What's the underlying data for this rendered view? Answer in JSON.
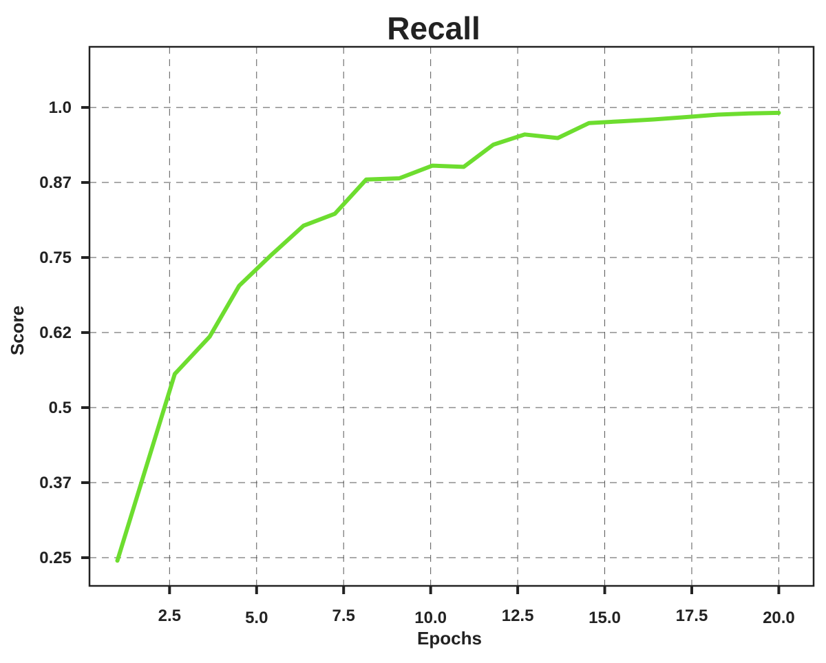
{
  "chart_data": {
    "type": "line",
    "title": "Recall",
    "xlabel": "Epochs",
    "ylabel": "Score",
    "xlim": [
      0.2,
      21.0
    ],
    "ylim": [
      0.203,
      1.101
    ],
    "grid": true,
    "x_ticks": [
      {
        "value": 2.5,
        "label": "2.5"
      },
      {
        "value": 5.0,
        "label": "5.0"
      },
      {
        "value": 7.5,
        "label": "7.5"
      },
      {
        "value": 10.0,
        "label": "10.0"
      },
      {
        "value": 12.5,
        "label": "12.5"
      },
      {
        "value": 15.0,
        "label": "15.0"
      },
      {
        "value": 17.5,
        "label": "17.5"
      },
      {
        "value": 20.0,
        "label": "20.0"
      }
    ],
    "y_ticks": [
      {
        "value": 0.25,
        "label": "0.25"
      },
      {
        "value": 0.375,
        "label": "0.37"
      },
      {
        "value": 0.5,
        "label": "0.5"
      },
      {
        "value": 0.625,
        "label": "0.62"
      },
      {
        "value": 0.75,
        "label": "0.75"
      },
      {
        "value": 0.875,
        "label": "0.87"
      },
      {
        "value": 1.0,
        "label": "1.0"
      }
    ],
    "series": [
      {
        "color": "#6ddd2f",
        "x": [
          1.0,
          2.65,
          3.65,
          4.5,
          5.4,
          6.35,
          7.25,
          8.15,
          9.1,
          10.05,
          10.95,
          11.8,
          12.7,
          13.65,
          14.55,
          15.5,
          16.4,
          17.35,
          18.25,
          19.15,
          20.0
        ],
        "y": [
          0.245,
          0.556,
          0.618,
          0.703,
          0.753,
          0.803,
          0.823,
          0.88,
          0.882,
          0.903,
          0.901,
          0.938,
          0.955,
          0.949,
          0.974,
          0.977,
          0.98,
          0.984,
          0.988,
          0.99,
          0.991
        ]
      }
    ]
  }
}
